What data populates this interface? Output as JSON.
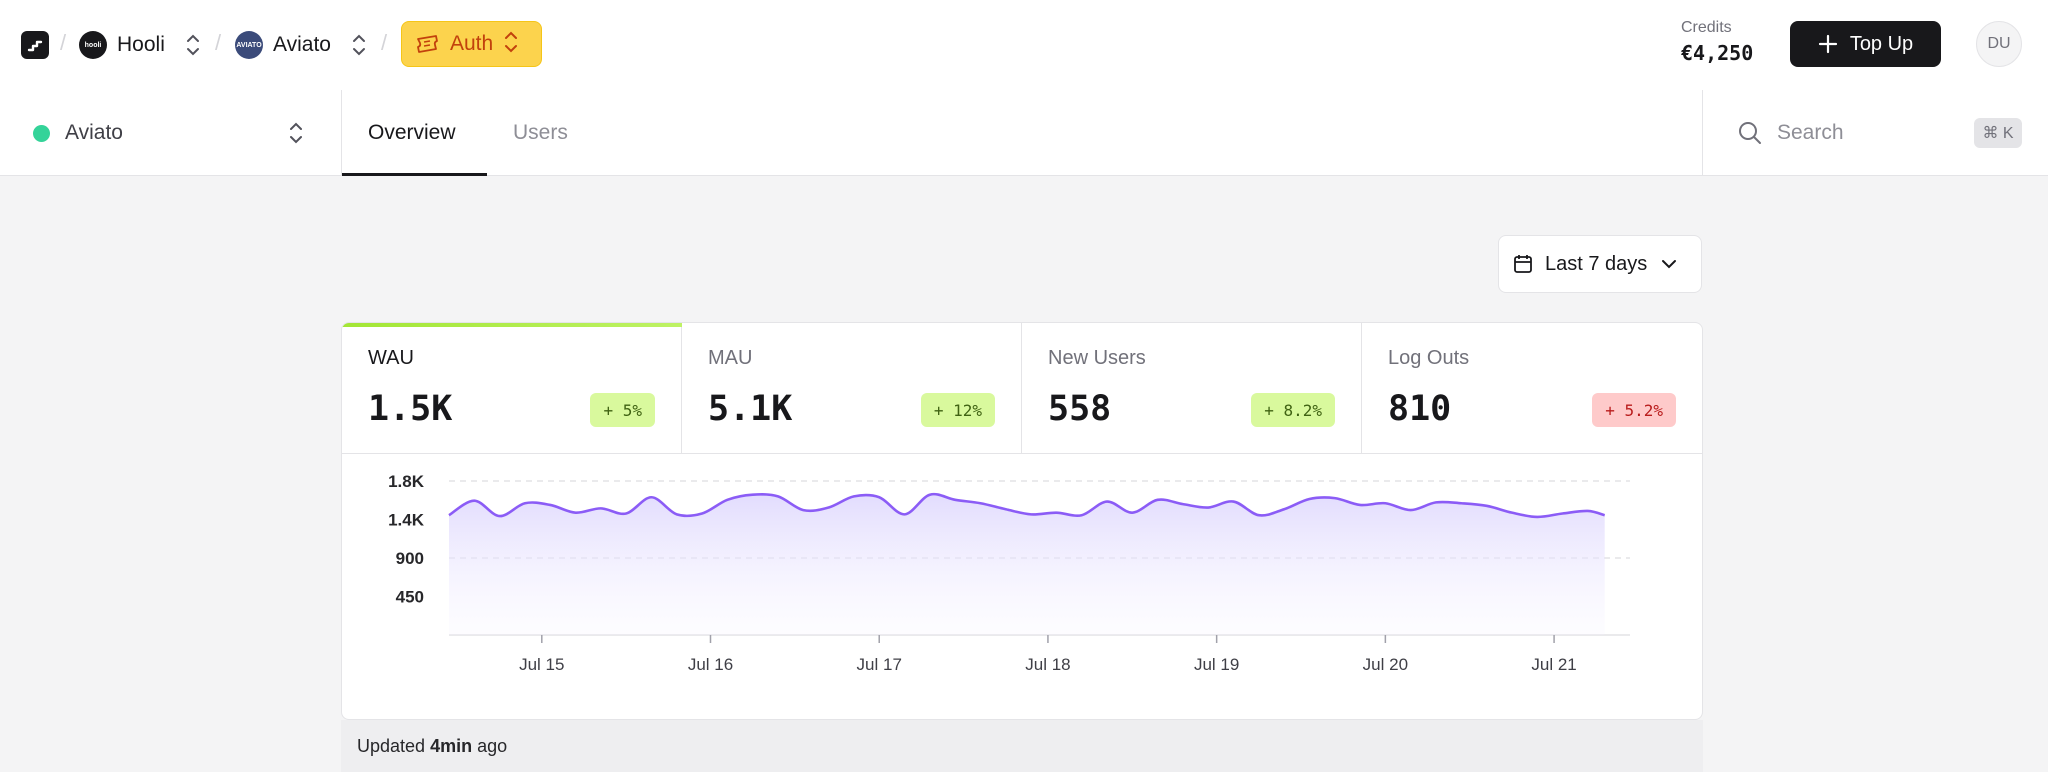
{
  "header": {
    "org": {
      "name": "Hooli",
      "logo_text": "hooli"
    },
    "project": {
      "name": "Aviato",
      "logo_text": "AVIATO"
    },
    "service": {
      "name": "Auth"
    },
    "credits": {
      "label": "Credits",
      "amount": "€4,250"
    },
    "topup_label": "Top Up",
    "user_initials": "DU"
  },
  "subnav": {
    "selected_project": "Aviato",
    "tabs": [
      {
        "label": "Overview",
        "active": true
      },
      {
        "label": "Users",
        "active": false
      }
    ],
    "search": {
      "placeholder": "Search",
      "shortcut": "⌘ K"
    }
  },
  "range": {
    "label": "Last 7 days"
  },
  "metrics": [
    {
      "label": "WAU",
      "value": "1.5K",
      "delta": "5%",
      "trend": "up",
      "active": true
    },
    {
      "label": "MAU",
      "value": "5.1K",
      "delta": "12%",
      "trend": "up",
      "active": false
    },
    {
      "label": "New Users",
      "value": "558",
      "delta": "8.2%",
      "trend": "up",
      "active": false
    },
    {
      "label": "Log Outs",
      "value": "810",
      "delta": "5.2%",
      "trend": "down",
      "active": false
    }
  ],
  "chart_data": {
    "type": "area",
    "y_ticks": [
      "1.8K",
      "1.4K",
      "900",
      "450"
    ],
    "y_tick_values": [
      1800,
      1350,
      900,
      450
    ],
    "ylim": [
      0,
      1800
    ],
    "x_ticks": [
      "Jul 15",
      "Jul 16",
      "Jul 17",
      "Jul 18",
      "Jul 19",
      "Jul 20",
      "Jul 21"
    ],
    "x_range": [
      14.45,
      21.45
    ],
    "x": [
      14.45,
      14.6,
      14.75,
      14.9,
      15.05,
      15.2,
      15.35,
      15.5,
      15.65,
      15.8,
      15.95,
      16.1,
      16.25,
      16.4,
      16.55,
      16.7,
      16.85,
      17.0,
      17.15,
      17.3,
      17.45,
      17.6,
      17.75,
      17.9,
      18.05,
      18.2,
      18.35,
      18.5,
      18.65,
      18.8,
      18.95,
      19.1,
      19.25,
      19.4,
      19.55,
      19.7,
      19.85,
      20.0,
      20.15,
      20.3,
      20.45,
      20.6,
      20.75,
      20.9,
      21.05,
      21.2,
      21.3
    ],
    "y": [
      1400,
      1570,
      1390,
      1540,
      1520,
      1430,
      1480,
      1420,
      1610,
      1410,
      1420,
      1580,
      1640,
      1620,
      1460,
      1490,
      1620,
      1610,
      1410,
      1640,
      1580,
      1540,
      1470,
      1410,
      1430,
      1400,
      1560,
      1430,
      1580,
      1530,
      1490,
      1560,
      1400,
      1470,
      1590,
      1600,
      1520,
      1540,
      1460,
      1550,
      1540,
      1510,
      1430,
      1380,
      1420,
      1450,
      1400
    ],
    "series": [
      {
        "values_ref": "y",
        "color": "#8b5cf6"
      }
    ]
  },
  "footer": {
    "prefix": "Updated",
    "bold": "4min",
    "suffix": "ago"
  },
  "colors": {
    "accent": "#8b5cf6",
    "auth_bg": "#fcd34d",
    "live_dot": "#34d399"
  }
}
